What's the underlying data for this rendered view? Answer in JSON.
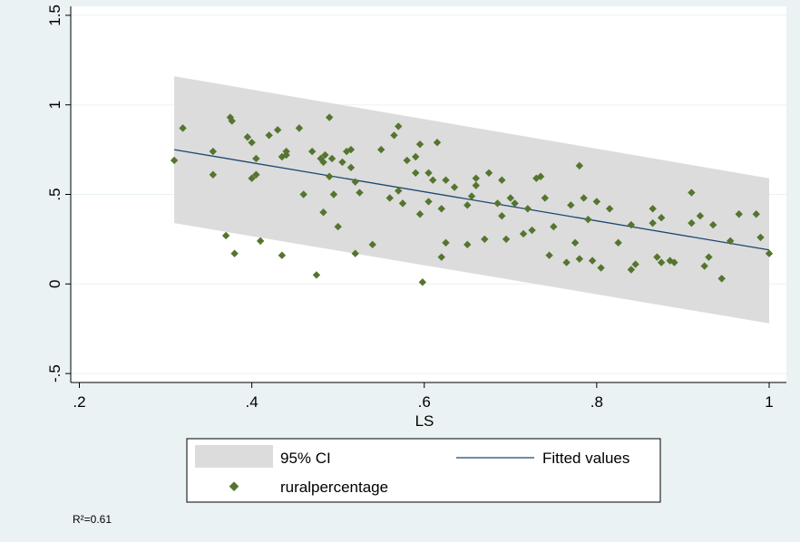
{
  "chart_data": {
    "type": "scatter",
    "title": "",
    "xlabel": "LS",
    "ylabel": "",
    "xlim": [
      0.19,
      1.02
    ],
    "ylim": [
      -0.55,
      1.55
    ],
    "x_ticks": [
      0.2,
      0.4,
      0.6,
      0.8,
      1.0
    ],
    "x_tick_labels": [
      ".2",
      ".4",
      ".6",
      ".8",
      "1"
    ],
    "y_ticks": [
      -0.5,
      0,
      0.5,
      1,
      1.5
    ],
    "y_tick_labels": [
      "-.5",
      "0",
      ".5",
      "1",
      "1.5"
    ],
    "grid": "horizontal",
    "legend": {
      "position": "bottom",
      "entries": [
        "95% CI",
        "Fitted values",
        "ruralpercentage"
      ]
    },
    "note": "R²=0.61",
    "colors": {
      "plot_background": "#ffffff",
      "frame_background": "#eaf2f3",
      "ci_band": "#dcdcdc",
      "fitted_line": "#1a476f",
      "points": "#55752f",
      "grid": "#eaf2f3"
    },
    "series": [
      {
        "name": "95% CI",
        "kind": "band",
        "x": [
          0.31,
          1.0
        ],
        "lower": [
          0.34,
          -0.22
        ],
        "upper": [
          1.16,
          0.59
        ]
      },
      {
        "name": "Fitted values",
        "kind": "line",
        "x": [
          0.31,
          1.0
        ],
        "y": [
          0.75,
          0.19
        ]
      },
      {
        "name": "ruralpercentage",
        "kind": "scatter",
        "x": [
          0.31,
          0.32,
          0.355,
          0.355,
          0.37,
          0.375,
          0.377,
          0.38,
          0.395,
          0.4,
          0.4,
          0.405,
          0.405,
          0.41,
          0.42,
          0.43,
          0.435,
          0.435,
          0.44,
          0.44,
          0.455,
          0.46,
          0.47,
          0.475,
          0.48,
          0.483,
          0.483,
          0.485,
          0.49,
          0.49,
          0.493,
          0.495,
          0.5,
          0.505,
          0.51,
          0.515,
          0.515,
          0.52,
          0.52,
          0.525,
          0.54,
          0.55,
          0.56,
          0.565,
          0.57,
          0.57,
          0.575,
          0.58,
          0.59,
          0.59,
          0.595,
          0.595,
          0.605,
          0.605,
          0.61,
          0.615,
          0.62,
          0.62,
          0.625,
          0.625,
          0.635,
          0.65,
          0.65,
          0.655,
          0.66,
          0.66,
          0.67,
          0.675,
          0.685,
          0.69,
          0.69,
          0.695,
          0.7,
          0.705,
          0.715,
          0.72,
          0.725,
          0.73,
          0.735,
          0.74,
          0.745,
          0.75,
          0.765,
          0.77,
          0.775,
          0.78,
          0.78,
          0.785,
          0.79,
          0.795,
          0.8,
          0.805,
          0.815,
          0.825,
          0.84,
          0.84,
          0.845,
          0.865,
          0.865,
          0.87,
          0.875,
          0.875,
          0.885,
          0.89,
          0.91,
          0.91,
          0.92,
          0.925,
          0.93,
          0.935,
          0.945,
          0.955,
          0.965,
          0.985,
          0.99,
          1.0,
          0.598
        ],
        "y": [
          0.69,
          0.87,
          0.74,
          0.61,
          0.27,
          0.93,
          0.91,
          0.17,
          0.82,
          0.79,
          0.59,
          0.7,
          0.61,
          0.24,
          0.83,
          0.86,
          0.71,
          0.16,
          0.72,
          0.74,
          0.87,
          0.5,
          0.74,
          0.05,
          0.7,
          0.68,
          0.4,
          0.72,
          0.6,
          0.93,
          0.7,
          0.5,
          0.32,
          0.68,
          0.74,
          0.65,
          0.75,
          0.57,
          0.17,
          0.51,
          0.22,
          0.75,
          0.48,
          0.83,
          0.88,
          0.52,
          0.45,
          0.69,
          0.71,
          0.62,
          0.39,
          0.78,
          0.46,
          0.62,
          0.58,
          0.79,
          0.42,
          0.15,
          0.58,
          0.23,
          0.54,
          0.22,
          0.44,
          0.49,
          0.59,
          0.55,
          0.25,
          0.62,
          0.45,
          0.58,
          0.38,
          0.25,
          0.48,
          0.45,
          0.28,
          0.42,
          0.3,
          0.59,
          0.6,
          0.48,
          0.16,
          0.32,
          0.12,
          0.44,
          0.23,
          0.66,
          0.14,
          0.48,
          0.36,
          0.13,
          0.46,
          0.09,
          0.42,
          0.23,
          0.33,
          0.08,
          0.11,
          0.42,
          0.34,
          0.15,
          0.37,
          0.12,
          0.13,
          0.12,
          0.51,
          0.34,
          0.38,
          0.1,
          0.15,
          0.33,
          0.03,
          0.24,
          0.39,
          0.39,
          0.26,
          0.17,
          0.01
        ]
      }
    ]
  }
}
